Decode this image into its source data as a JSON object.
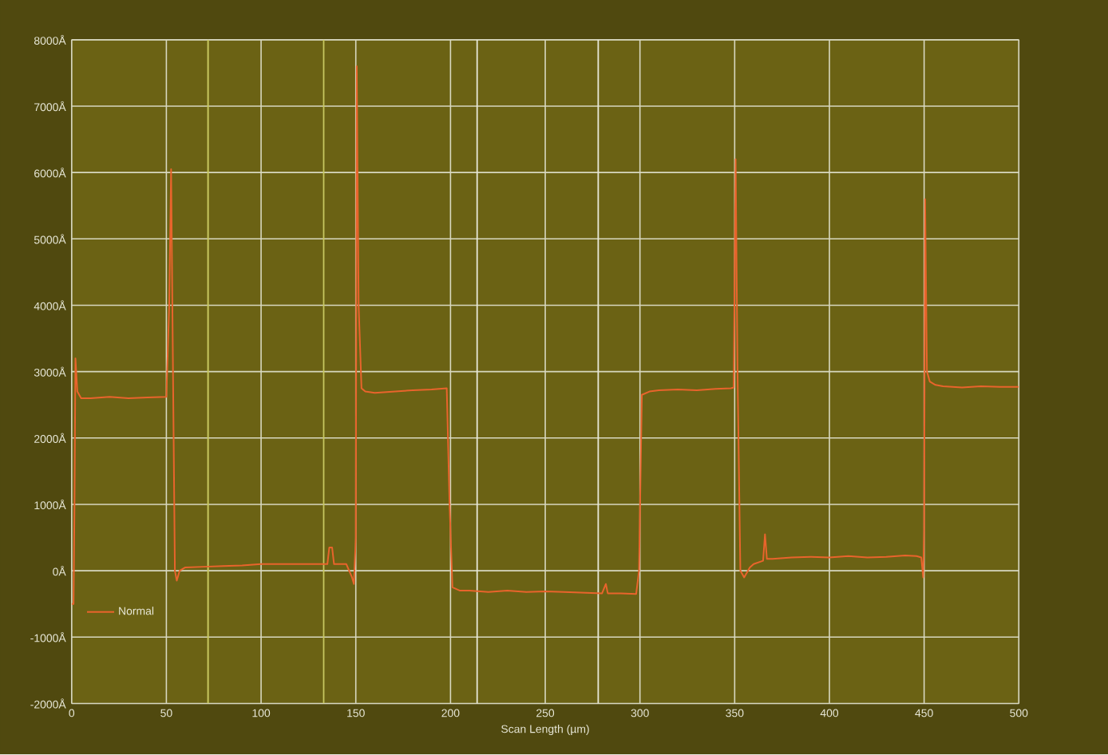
{
  "chart_data": {
    "type": "line",
    "xlabel": "Scan Length (µm)",
    "xlim": [
      0,
      500
    ],
    "xticks": [
      0,
      50,
      100,
      150,
      200,
      250,
      300,
      350,
      400,
      450,
      500
    ],
    "ylim": [
      -2000,
      8000
    ],
    "yticks": [
      {
        "value": -2000,
        "label": "-2000Å"
      },
      {
        "value": -1000,
        "label": "-1000Å"
      },
      {
        "value": 0,
        "label": "0Å"
      },
      {
        "value": 1000,
        "label": "1000Å"
      },
      {
        "value": 2000,
        "label": "2000Å"
      },
      {
        "value": 3000,
        "label": "3000Å"
      },
      {
        "value": 4000,
        "label": "4000Å"
      },
      {
        "value": 5000,
        "label": "5000Å"
      },
      {
        "value": 6000,
        "label": "6000Å"
      },
      {
        "value": 7000,
        "label": "7000Å"
      },
      {
        "value": 8000,
        "label": "8000Å"
      }
    ],
    "grid": true,
    "legend": "bottom left",
    "marker": "none",
    "line_style": "solid",
    "ref_lines": [
      {
        "axis": "x",
        "value": 72,
        "color": "#c8c860"
      },
      {
        "axis": "x",
        "value": 133,
        "color": "#c8c860"
      },
      {
        "axis": "x",
        "value": 214,
        "color": "#e8e8d8"
      },
      {
        "axis": "x",
        "value": 278,
        "color": "#e8e8d8"
      }
    ],
    "series": [
      {
        "name": "Normal",
        "color": "#e8642c",
        "x": [
          0,
          1,
          1.5,
          2,
          3,
          5,
          10,
          20,
          30,
          40,
          50,
          51.5,
          52.5,
          53.5,
          54.5,
          55.5,
          57,
          60,
          70,
          80,
          90,
          100,
          110,
          120,
          130,
          135,
          136,
          137.5,
          138.5,
          140,
          145,
          148,
          149,
          150,
          150.5,
          151.5,
          153,
          155,
          160,
          170,
          180,
          190,
          198,
          199.5,
          201,
          205,
          210,
          220,
          230,
          240,
          250,
          260,
          270,
          280,
          282,
          283,
          290,
          298,
          299.5,
          301,
          305,
          310,
          320,
          330,
          340,
          348,
          349.5,
          350.5,
          351.5,
          353,
          355,
          358,
          360,
          365,
          366,
          367,
          370,
          380,
          390,
          400,
          410,
          420,
          430,
          440,
          446,
          448.5,
          449.5,
          450,
          450.5,
          451.5,
          453,
          456,
          460,
          470,
          480,
          490,
          500
        ],
        "values": [
          -500,
          -500,
          1000,
          3200,
          2700,
          2600,
          2600,
          2620,
          2600,
          2610,
          2620,
          4000,
          6050,
          3000,
          0,
          -150,
          0,
          50,
          60,
          70,
          80,
          100,
          100,
          100,
          100,
          100,
          350,
          350,
          100,
          100,
          100,
          -100,
          -200,
          500,
          7600,
          4000,
          2750,
          2700,
          2680,
          2700,
          2720,
          2730,
          2750,
          1000,
          -250,
          -300,
          -300,
          -320,
          -300,
          -320,
          -310,
          -320,
          -330,
          -340,
          -200,
          -340,
          -340,
          -350,
          0,
          2650,
          2700,
          2720,
          2730,
          2720,
          2740,
          2750,
          2760,
          6200,
          3000,
          0,
          -100,
          50,
          100,
          150,
          550,
          180,
          180,
          200,
          210,
          200,
          220,
          200,
          210,
          230,
          220,
          200,
          -100,
          600,
          5600,
          3000,
          2850,
          2800,
          2780,
          2760,
          2780,
          2770,
          2770
        ]
      }
    ]
  }
}
